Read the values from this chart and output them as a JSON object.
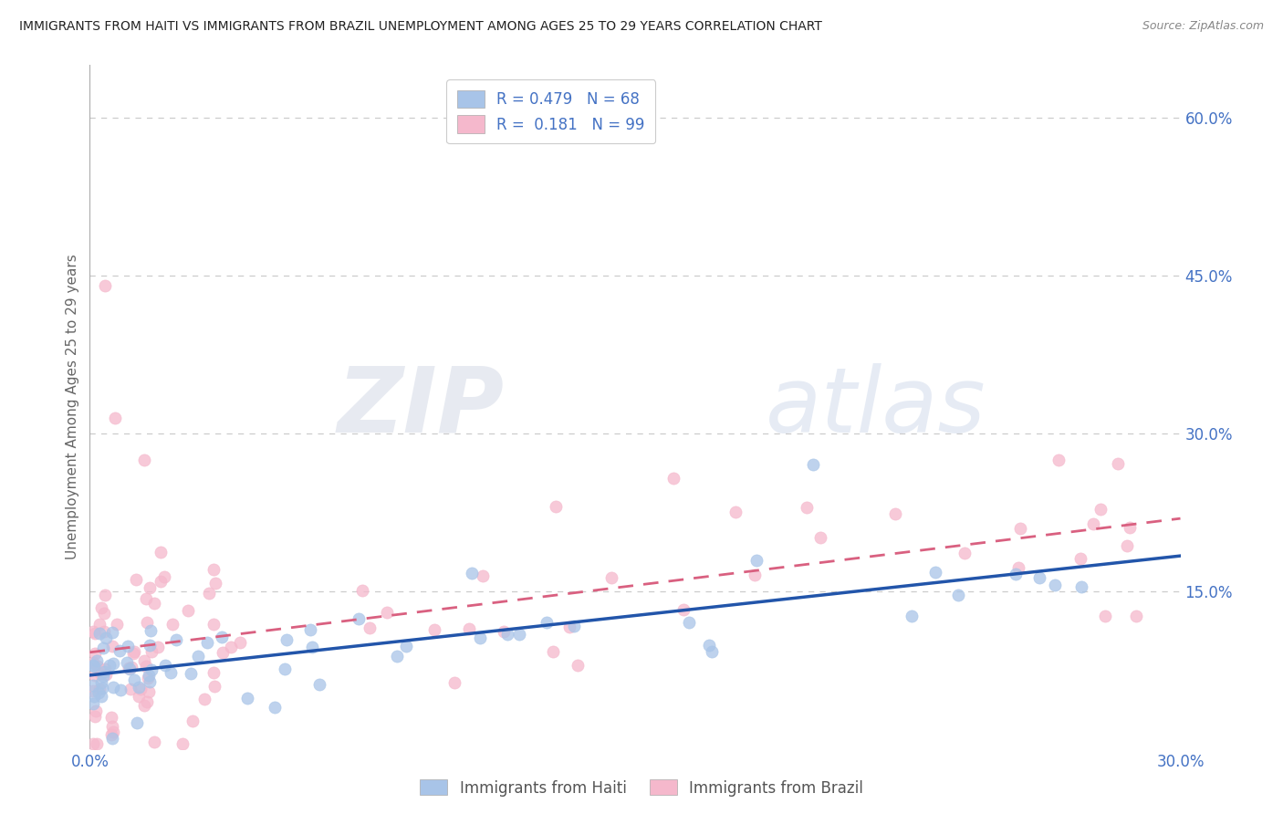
{
  "title": "IMMIGRANTS FROM HAITI VS IMMIGRANTS FROM BRAZIL UNEMPLOYMENT AMONG AGES 25 TO 29 YEARS CORRELATION CHART",
  "source": "Source: ZipAtlas.com",
  "ylabel": "Unemployment Among Ages 25 to 29 years",
  "xmin": 0.0,
  "xmax": 0.3,
  "ymin": 0.0,
  "ymax": 0.65,
  "yticks": [
    0.0,
    0.15,
    0.3,
    0.45,
    0.6
  ],
  "ytick_labels": [
    "",
    "15.0%",
    "30.0%",
    "45.0%",
    "60.0%"
  ],
  "haiti_R": 0.479,
  "haiti_N": 68,
  "brazil_R": 0.181,
  "brazil_N": 99,
  "haiti_color": "#a8c4e8",
  "brazil_color": "#f5b8cc",
  "haiti_line_color": "#2255aa",
  "brazil_line_color": "#d96080",
  "grid_color": "#cccccc",
  "title_color": "#333333",
  "label_color": "#4472c4",
  "watermark_zip": "ZIP",
  "watermark_atlas": "atlas",
  "legend_label_haiti": "R = 0.479   N = 68",
  "legend_label_brazil": "R =  0.181   N = 99",
  "bottom_label_haiti": "Immigrants from Haiti",
  "bottom_label_brazil": "Immigrants from Brazil"
}
